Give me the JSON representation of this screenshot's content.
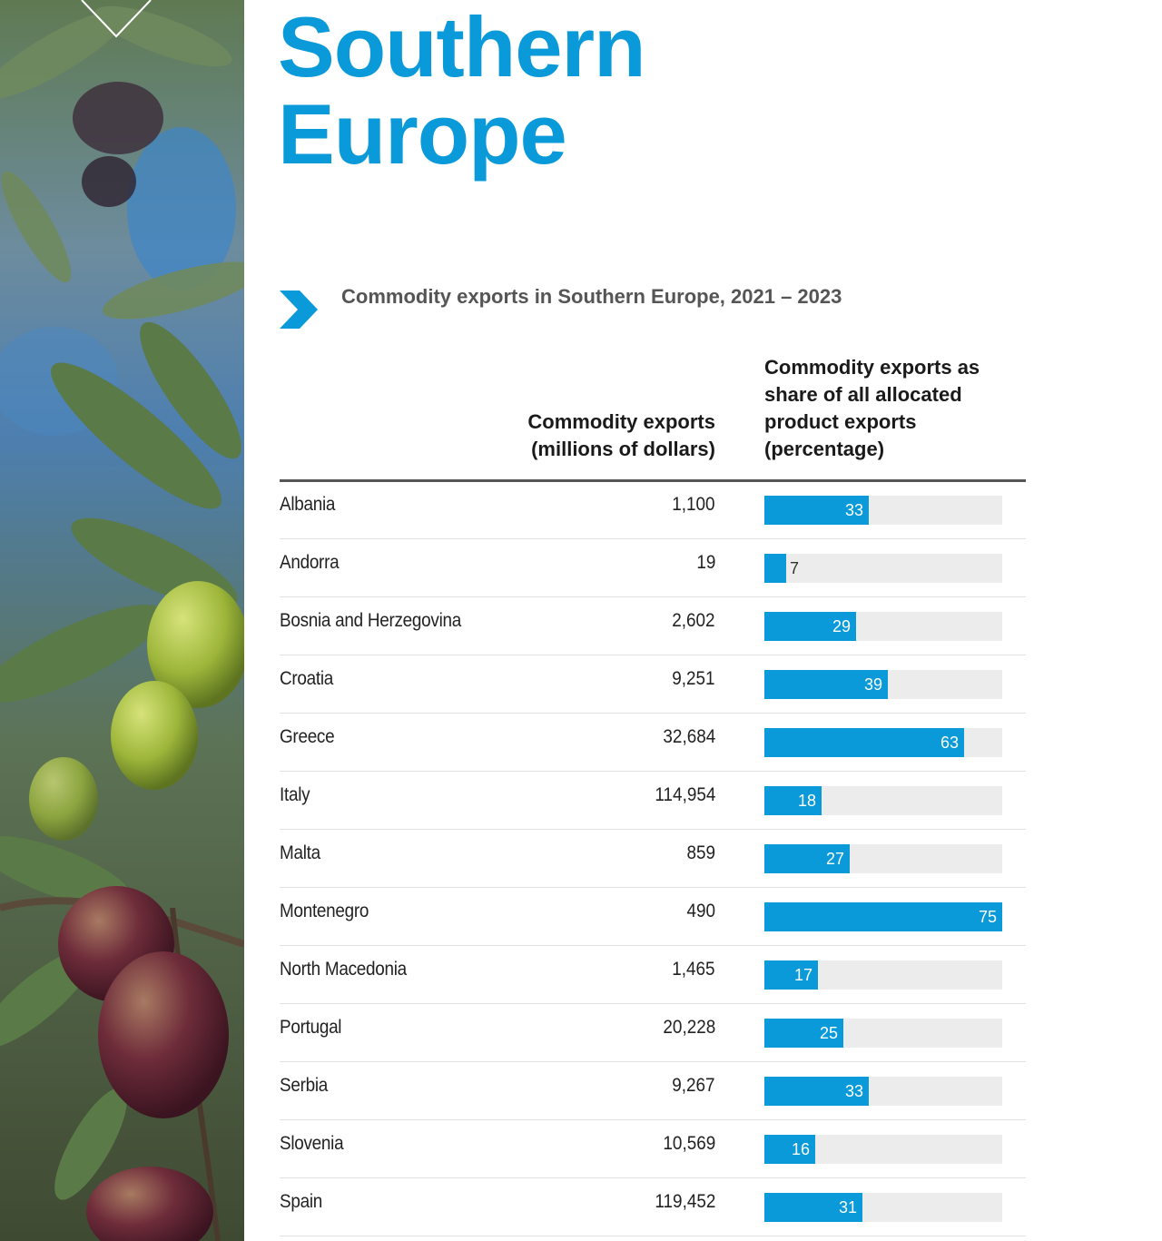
{
  "page": {
    "title_line1": "Southern",
    "title_line2": "Europe",
    "chart_subtitle": "Commodity exports in Southern Europe, 2021 – 2023"
  },
  "colors": {
    "accent": "#0a9ad9",
    "track": "#ececec",
    "text": "#222222"
  },
  "chart_data": {
    "type": "table",
    "title": "Commodity exports in Southern Europe, 2021 – 2023",
    "columns": [
      "Commodity exports (millions of dollars)",
      "Commodity exports as share of all allocated product exports (percentage)"
    ],
    "header_exports_line1": "Commodity exports",
    "header_exports_line2": "(millions of dollars)",
    "header_share_line1": "Commodity exports as",
    "header_share_line2": "share of all allocated",
    "header_share_line3": "product exports",
    "header_share_line4": "(percentage)",
    "share_scale_max": 75,
    "rows": [
      {
        "country": "Albania",
        "exports": "1,100",
        "share": 33
      },
      {
        "country": "Andorra",
        "exports": "19",
        "share": 7
      },
      {
        "country": "Bosnia and Herzegovina",
        "exports": "2,602",
        "share": 29
      },
      {
        "country": "Croatia",
        "exports": "9,251",
        "share": 39
      },
      {
        "country": "Greece",
        "exports": "32,684",
        "share": 63
      },
      {
        "country": "Italy",
        "exports": "114,954",
        "share": 18
      },
      {
        "country": "Malta",
        "exports": "859",
        "share": 27
      },
      {
        "country": "Montenegro",
        "exports": "490",
        "share": 75
      },
      {
        "country": "North Macedonia",
        "exports": "1,465",
        "share": 17
      },
      {
        "country": "Portugal",
        "exports": "20,228",
        "share": 25
      },
      {
        "country": "Serbia",
        "exports": "9,267",
        "share": 33
      },
      {
        "country": "Slovenia",
        "exports": "10,569",
        "share": 16
      },
      {
        "country": "Spain",
        "exports": "119,452",
        "share": 31
      }
    ]
  }
}
